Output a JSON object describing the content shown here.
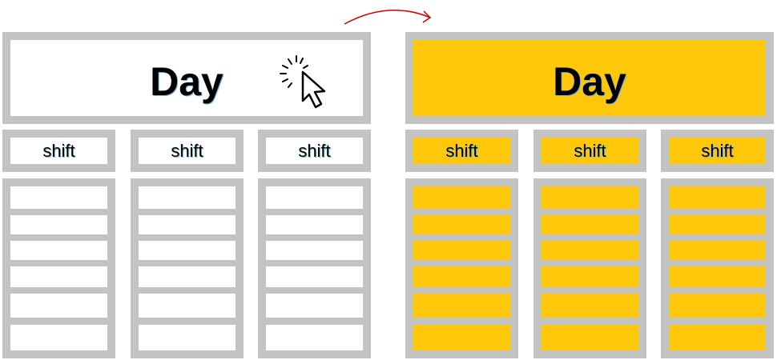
{
  "colors": {
    "border": "#c3c3c3",
    "highlight": "#ffc70a",
    "arrow": "#cc0000"
  },
  "left_panel": {
    "day": "Day",
    "shifts": [
      "shift",
      "shift",
      "shift"
    ]
  },
  "right_panel": {
    "day": "Day",
    "shifts": [
      "shift",
      "shift",
      "shift"
    ]
  },
  "icons": {
    "cursor": "click-cursor-icon",
    "transition": "curved-arrow-icon"
  }
}
